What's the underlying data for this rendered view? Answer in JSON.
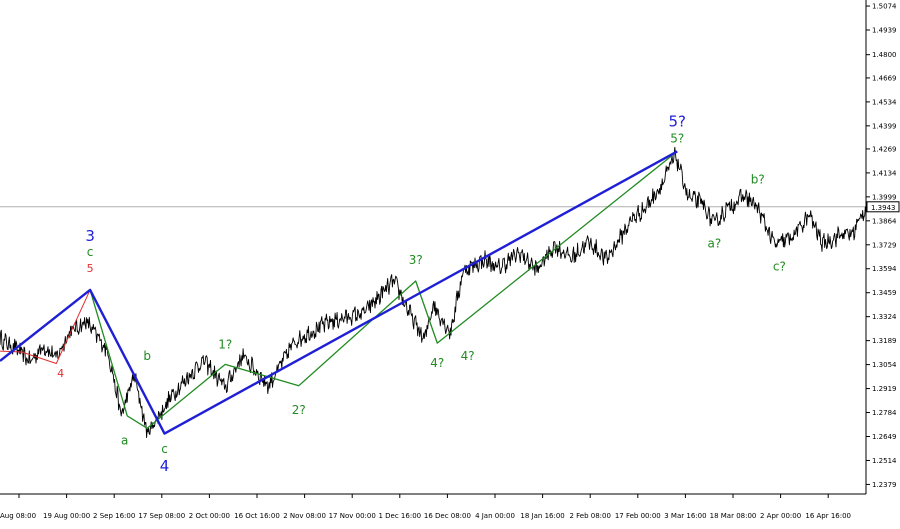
{
  "chart_data": {
    "type": "line",
    "title": "",
    "xlabel": "",
    "ylabel": "",
    "ylim": [
      1.2325,
      1.5108
    ],
    "y_ticks": [
      "1.5074",
      "1.4939",
      "1.4800",
      "1.4669",
      "1.4534",
      "1.4399",
      "1.4269",
      "1.4134",
      "1.3999",
      "1.3864",
      "1.3729",
      "1.3594",
      "1.3459",
      "1.3324",
      "1.3189",
      "1.3054",
      "1.2919",
      "1.2784",
      "1.2649",
      "1.2514",
      "1.2379"
    ],
    "x_ticks": [
      "Aug 08:00",
      "19 Aug 00:00",
      "2 Sep 16:00",
      "17 Sep 08:00",
      "2 Oct 00:00",
      "16 Oct 16:00",
      "2 Nov 08:00",
      "17 Nov 00:00",
      "1 Dec 16:00",
      "16 Dec 08:00",
      "4 Jan 00:00",
      "18 Jan 16:00",
      "2 Feb 08:00",
      "17 Feb 00:00",
      "3 Mar 16:00",
      "18 Mar 08:00",
      "2 Apr 00:00",
      "16 Apr 16:00"
    ],
    "current_price": "1.3943",
    "colors": {
      "price": "#000000",
      "blue_wave": "#1f1fd6",
      "green_wave": "#228b22",
      "red_wave": "#e03030",
      "current_line": "#b0b0b0",
      "axis": "#000000"
    },
    "price_anchors": [
      {
        "x": 0,
        "y": 1.32
      },
      {
        "x": 0.02,
        "y": 1.314
      },
      {
        "x": 0.035,
        "y": 1.307
      },
      {
        "x": 0.05,
        "y": 1.316
      },
      {
        "x": 0.065,
        "y": 1.309
      },
      {
        "x": 0.08,
        "y": 1.3235
      },
      {
        "x": 0.1,
        "y": 1.3295
      },
      {
        "x": 0.125,
        "y": 1.3125
      },
      {
        "x": 0.14,
        "y": 1.2765
      },
      {
        "x": 0.155,
        "y": 1.2995
      },
      {
        "x": 0.17,
        "y": 1.2665
      },
      {
        "x": 0.2,
        "y": 1.289
      },
      {
        "x": 0.235,
        "y": 1.308
      },
      {
        "x": 0.26,
        "y": 1.2925
      },
      {
        "x": 0.28,
        "y": 1.3105
      },
      {
        "x": 0.31,
        "y": 1.2935
      },
      {
        "x": 0.34,
        "y": 1.3185
      },
      {
        "x": 0.38,
        "y": 1.3295
      },
      {
        "x": 0.42,
        "y": 1.3345
      },
      {
        "x": 0.455,
        "y": 1.3525
      },
      {
        "x": 0.475,
        "y": 1.3325
      },
      {
        "x": 0.49,
        "y": 1.319
      },
      {
        "x": 0.5,
        "y": 1.3395
      },
      {
        "x": 0.52,
        "y": 1.3235
      },
      {
        "x": 0.535,
        "y": 1.3585
      },
      {
        "x": 0.56,
        "y": 1.3645
      },
      {
        "x": 0.575,
        "y": 1.3595
      },
      {
        "x": 0.6,
        "y": 1.3685
      },
      {
        "x": 0.62,
        "y": 1.3585
      },
      {
        "x": 0.64,
        "y": 1.3725
      },
      {
        "x": 0.66,
        "y": 1.3655
      },
      {
        "x": 0.68,
        "y": 1.3745
      },
      {
        "x": 0.7,
        "y": 1.3645
      },
      {
        "x": 0.73,
        "y": 1.3875
      },
      {
        "x": 0.745,
        "y": 1.3935
      },
      {
        "x": 0.765,
        "y": 1.4075
      },
      {
        "x": 0.78,
        "y": 1.4235
      },
      {
        "x": 0.795,
        "y": 1.3995
      },
      {
        "x": 0.81,
        "y": 1.3965
      },
      {
        "x": 0.825,
        "y": 1.3845
      },
      {
        "x": 0.84,
        "y": 1.3935
      },
      {
        "x": 0.86,
        "y": 1.4005
      },
      {
        "x": 0.875,
        "y": 1.3935
      },
      {
        "x": 0.895,
        "y": 1.3725
      },
      {
        "x": 0.915,
        "y": 1.3775
      },
      {
        "x": 0.935,
        "y": 1.3895
      },
      {
        "x": 0.95,
        "y": 1.3735
      },
      {
        "x": 0.97,
        "y": 1.3785
      },
      {
        "x": 0.985,
        "y": 1.3795
      },
      {
        "x": 1,
        "y": 1.3943
      }
    ],
    "wave_lines": [
      {
        "color": "blue",
        "points": [
          [
            0.0,
            1.3075
          ],
          [
            0.104,
            1.3475
          ],
          [
            0.19,
            1.2665
          ],
          [
            0.782,
            1.4255
          ]
        ]
      },
      {
        "color": "green",
        "points": [
          [
            0.0,
            1.3075
          ],
          [
            0.104,
            1.3475
          ],
          [
            0.147,
            1.2765
          ],
          [
            0.17,
            1.2695
          ],
          [
            0.26,
            1.3055
          ],
          [
            0.345,
            1.2935
          ],
          [
            0.48,
            1.3525
          ],
          [
            0.505,
            1.3175
          ],
          [
            0.782,
            1.4255
          ]
        ]
      },
      {
        "color": "red",
        "points": [
          [
            0.0,
            1.313
          ],
          [
            0.025,
            1.3125
          ],
          [
            0.065,
            1.306
          ],
          [
            0.104,
            1.3475
          ]
        ]
      }
    ],
    "wave_labels": [
      {
        "text": "3",
        "color": "blue",
        "x": 0.104,
        "y": 1.375,
        "size": "big"
      },
      {
        "text": "c",
        "color": "green",
        "x": 0.104,
        "y": 1.3665,
        "size": "med"
      },
      {
        "text": "5",
        "color": "red",
        "x": 0.104,
        "y": 1.3575,
        "size": "sm"
      },
      {
        "text": "4",
        "color": "red",
        "x": 0.07,
        "y": 1.2985,
        "size": "sm"
      },
      {
        "text": "b",
        "color": "green",
        "x": 0.17,
        "y": 1.308,
        "size": "med"
      },
      {
        "text": "a",
        "color": "green",
        "x": 0.144,
        "y": 1.2605,
        "size": "med"
      },
      {
        "text": "c",
        "color": "green",
        "x": 0.19,
        "y": 1.2555,
        "size": "med"
      },
      {
        "text": "4",
        "color": "blue",
        "x": 0.19,
        "y": 1.2455,
        "size": "big"
      },
      {
        "text": "1?",
        "color": "green",
        "x": 0.26,
        "y": 1.3145,
        "size": "med"
      },
      {
        "text": "2?",
        "color": "green",
        "x": 0.345,
        "y": 1.2775,
        "size": "med"
      },
      {
        "text": "3?",
        "color": "green",
        "x": 0.48,
        "y": 1.362,
        "size": "med"
      },
      {
        "text": "4?",
        "color": "green",
        "x": 0.505,
        "y": 1.304,
        "size": "med"
      },
      {
        "text": "4?",
        "color": "green",
        "x": 0.54,
        "y": 1.308,
        "size": "med"
      },
      {
        "text": "5?",
        "color": "blue",
        "x": 0.782,
        "y": 1.4395,
        "size": "big"
      },
      {
        "text": "5?",
        "color": "green",
        "x": 0.782,
        "y": 1.4305,
        "size": "med"
      },
      {
        "text": "a?",
        "color": "green",
        "x": 0.825,
        "y": 1.3715,
        "size": "med"
      },
      {
        "text": "b?",
        "color": "green",
        "x": 0.875,
        "y": 1.4075,
        "size": "med"
      },
      {
        "text": "c?",
        "color": "green",
        "x": 0.9,
        "y": 1.3585,
        "size": "med"
      }
    ]
  }
}
